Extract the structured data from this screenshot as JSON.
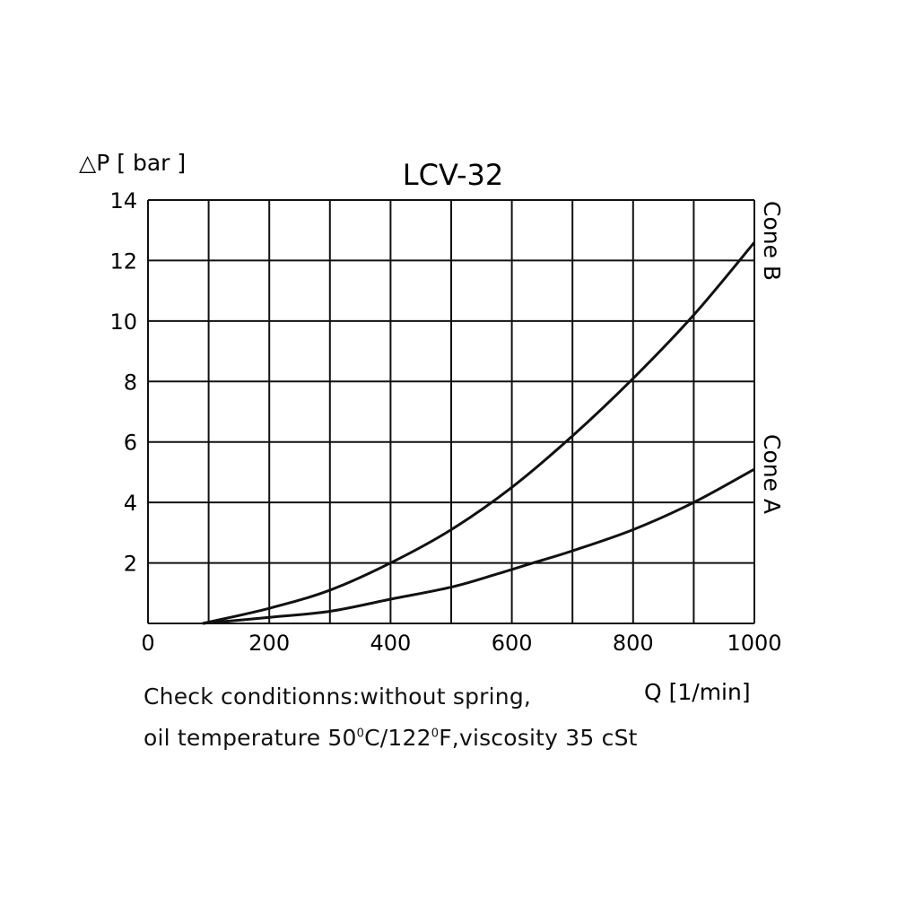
{
  "chart_data": {
    "type": "line",
    "title": "LCV-32",
    "ylabel": "△P [ bar ]",
    "xlabel": "Q [1/min]",
    "xlim": [
      0,
      1000
    ],
    "ylim": [
      0,
      14
    ],
    "x_ticks": [
      0,
      200,
      400,
      600,
      800,
      1000
    ],
    "y_ticks": [
      2,
      4,
      6,
      8,
      10,
      12,
      14
    ],
    "grid": true,
    "grid_x_step": 100,
    "grid_y_step": 2,
    "line_color": "#111111",
    "series": [
      {
        "name": "Cone B",
        "x": [
          90,
          200,
          300,
          400,
          500,
          600,
          700,
          800,
          900,
          1000
        ],
        "y": [
          0,
          0.5,
          1.1,
          2,
          3.1,
          4.5,
          6.2,
          8.1,
          10.2,
          12.6
        ]
      },
      {
        "name": "Cone A",
        "x": [
          90,
          200,
          300,
          400,
          500,
          570,
          635,
          700,
          800,
          900,
          1000
        ],
        "y": [
          0,
          0.2,
          0.4,
          0.8,
          1.2,
          1.6,
          2,
          2.4,
          3.1,
          4,
          5.1
        ]
      }
    ]
  },
  "notes": {
    "line1": "Check conditionns:without spring,",
    "line2_a": "oil temperature 50",
    "deg": "0",
    "line2_b": "C/122",
    "line2_c": "F,viscosity 35 cSt"
  }
}
